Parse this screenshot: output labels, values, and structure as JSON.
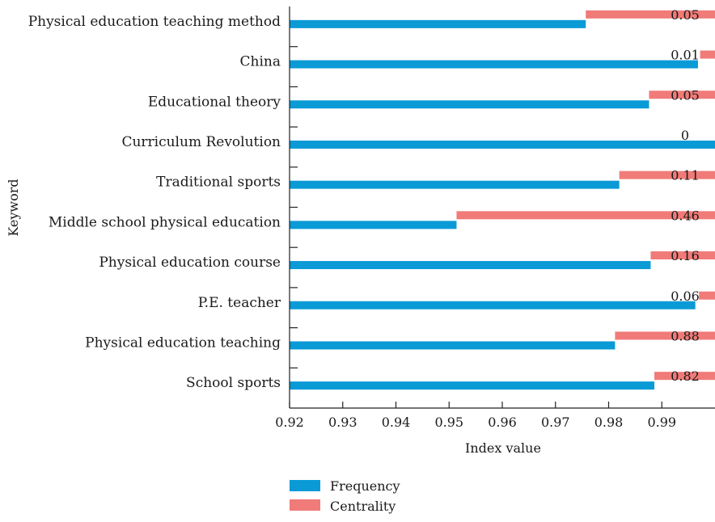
{
  "chart_data": {
    "type": "bar",
    "orientation": "horizontal",
    "xlabel": "Index value",
    "ylabel": "Keyword",
    "xlim": [
      0.92,
      1.0
    ],
    "xticks": [
      0.92,
      0.93,
      0.94,
      0.95,
      0.96,
      0.97,
      0.98,
      0.99
    ],
    "categories": [
      "Physical education teaching method",
      "China",
      "Educational theory",
      "Curriculum Revolution",
      "Traditional sports",
      "Middle school physical education",
      "Physical education course",
      "P.E. teacher",
      "Physical education teaching",
      "School sports"
    ],
    "series": [
      {
        "name": "Frequency",
        "color": "#0a9ad6",
        "values": [
          0.9757,
          0.9968,
          0.9876,
          1.0,
          0.982,
          0.9514,
          0.9879,
          0.9963,
          0.9812,
          0.9886
        ]
      },
      {
        "name": "Centrality",
        "color": "#f07b78",
        "values": [
          0.05,
          0.01,
          0.05,
          0,
          0.11,
          0.46,
          0.16,
          0.06,
          0.88,
          0.82
        ],
        "labels": [
          "0.05",
          "0.01",
          "0.05",
          "0",
          "0.11",
          "0.46",
          "0.16",
          "0.06",
          "0.88",
          "0.82"
        ],
        "display_start": [
          0.9757,
          0.9972,
          0.9876,
          1.0,
          0.982,
          0.9514,
          0.9879,
          0.997,
          0.9812,
          0.9886
        ]
      }
    ],
    "legend_position": "bottom-center",
    "grid": false
  }
}
